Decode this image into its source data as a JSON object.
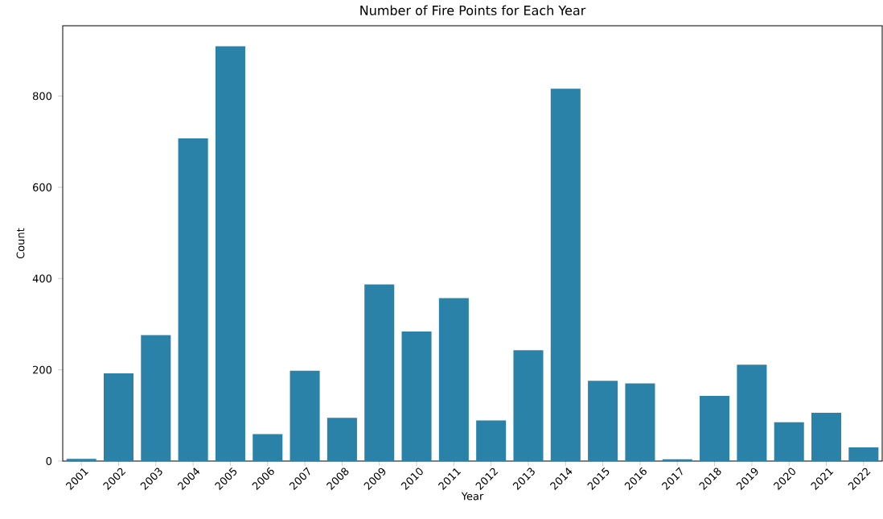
{
  "chart_data": {
    "type": "bar",
    "title": "Number of Fire Points for Each Year",
    "xlabel": "Year",
    "ylabel": "Count",
    "categories": [
      "2001",
      "2002",
      "2003",
      "2004",
      "2005",
      "2006",
      "2007",
      "2008",
      "2009",
      "2010",
      "2011",
      "2012",
      "2013",
      "2014",
      "2015",
      "2016",
      "2017",
      "2018",
      "2019",
      "2020",
      "2021",
      "2022"
    ],
    "values": [
      5,
      192,
      276,
      707,
      909,
      59,
      198,
      95,
      387,
      284,
      357,
      89,
      243,
      816,
      176,
      170,
      4,
      143,
      211,
      85,
      106,
      30
    ],
    "color": "#2a82a9",
    "ylim": [
      0,
      954
    ],
    "yticks": [
      0,
      200,
      400,
      600,
      800
    ]
  }
}
